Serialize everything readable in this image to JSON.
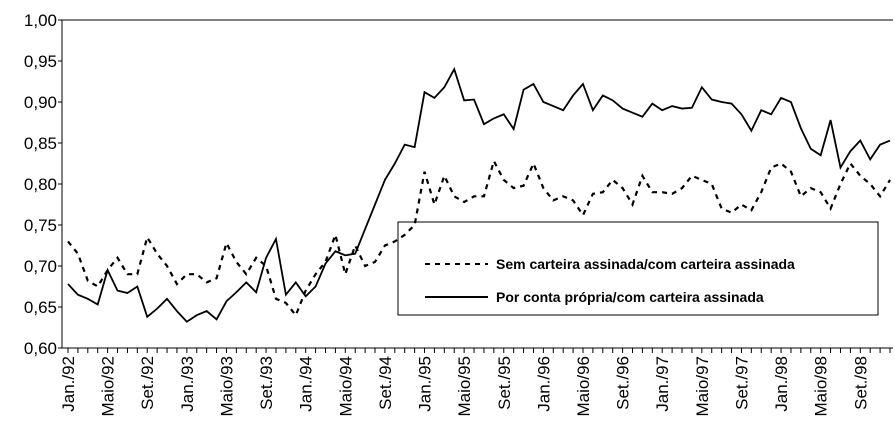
{
  "chart_data": {
    "type": "line",
    "categories": [
      "Jan./92",
      null,
      null,
      null,
      "Maio/92",
      null,
      null,
      null,
      "Set./92",
      null,
      null,
      null,
      "Jan./93",
      null,
      null,
      null,
      "Maio/93",
      null,
      null,
      null,
      "Set./93",
      null,
      null,
      null,
      "Jan./94",
      null,
      null,
      null,
      "Maio/94",
      null,
      null,
      null,
      "Set./94",
      null,
      null,
      null,
      "Jan./95",
      null,
      null,
      null,
      "Maio/95",
      null,
      null,
      null,
      "Set./95",
      null,
      null,
      null,
      "Jan./96",
      null,
      null,
      null,
      "Maio/96",
      null,
      null,
      null,
      "Set./96",
      null,
      null,
      null,
      "Jan./97",
      null,
      null,
      null,
      "Maio/97",
      null,
      null,
      null,
      "Set./97",
      null,
      null,
      null,
      "Jan./98",
      null,
      null,
      null,
      "Maio/98",
      null,
      null,
      null,
      "Set./98",
      null,
      null,
      null
    ],
    "series": [
      {
        "name": "Sem carteira assinada/com carteira assinada",
        "color": "#000000",
        "dash": true,
        "values": [
          0.73,
          0.715,
          0.682,
          0.675,
          0.695,
          0.71,
          0.69,
          0.69,
          0.735,
          0.715,
          0.7,
          0.678,
          0.69,
          0.69,
          0.68,
          0.685,
          0.728,
          0.705,
          0.69,
          0.71,
          0.7,
          0.66,
          0.655,
          0.64,
          0.67,
          0.69,
          0.705,
          0.738,
          0.69,
          0.725,
          0.7,
          0.705,
          0.725,
          0.73,
          0.738,
          0.75,
          0.815,
          0.775,
          0.81,
          0.785,
          0.778,
          0.785,
          0.785,
          0.828,
          0.805,
          0.795,
          0.798,
          0.825,
          0.795,
          0.78,
          0.785,
          0.78,
          0.762,
          0.788,
          0.79,
          0.805,
          0.795,
          0.775,
          0.81,
          0.79,
          0.79,
          0.788,
          0.795,
          0.81,
          0.805,
          0.8,
          0.77,
          0.765,
          0.775,
          0.768,
          0.79,
          0.82,
          0.825,
          0.815,
          0.785,
          0.795,
          0.79,
          0.77,
          0.8,
          0.825,
          0.81,
          0.8,
          0.785,
          0.805
        ]
      },
      {
        "name": "Por conta própria/com carteira assinada",
        "color": "#000000",
        "dash": false,
        "values": [
          0.678,
          0.665,
          0.66,
          0.653,
          0.695,
          0.67,
          0.667,
          0.675,
          0.638,
          0.648,
          0.66,
          0.645,
          0.632,
          0.64,
          0.645,
          0.635,
          0.657,
          0.668,
          0.68,
          0.668,
          0.71,
          0.733,
          0.665,
          0.68,
          0.663,
          0.675,
          0.703,
          0.718,
          0.713,
          0.715,
          0.745,
          0.775,
          0.805,
          0.825,
          0.848,
          0.845,
          0.912,
          0.905,
          0.918,
          0.94,
          0.902,
          0.903,
          0.873,
          0.88,
          0.885,
          0.867,
          0.915,
          0.922,
          0.9,
          0.895,
          0.89,
          0.908,
          0.922,
          0.89,
          0.908,
          0.902,
          0.892,
          0.887,
          0.882,
          0.898,
          0.89,
          0.895,
          0.892,
          0.893,
          0.918,
          0.903,
          0.9,
          0.898,
          0.885,
          0.865,
          0.89,
          0.885,
          0.905,
          0.9,
          0.868,
          0.843,
          0.835,
          0.878,
          0.82,
          0.84,
          0.853,
          0.83,
          0.848,
          0.853
        ]
      }
    ],
    "ylim": [
      0.6,
      1.0
    ],
    "yticks": [
      {
        "value": 0.6,
        "label": "0,60"
      },
      {
        "value": 0.65,
        "label": "0,65"
      },
      {
        "value": 0.7,
        "label": "0,70"
      },
      {
        "value": 0.75,
        "label": "0,75"
      },
      {
        "value": 0.8,
        "label": "0,80"
      },
      {
        "value": 0.85,
        "label": "0,85"
      },
      {
        "value": 0.9,
        "label": "0,90"
      },
      {
        "value": 0.95,
        "label": "0,95"
      },
      {
        "value": 1.0,
        "label": "1,00"
      }
    ],
    "grid": false
  }
}
